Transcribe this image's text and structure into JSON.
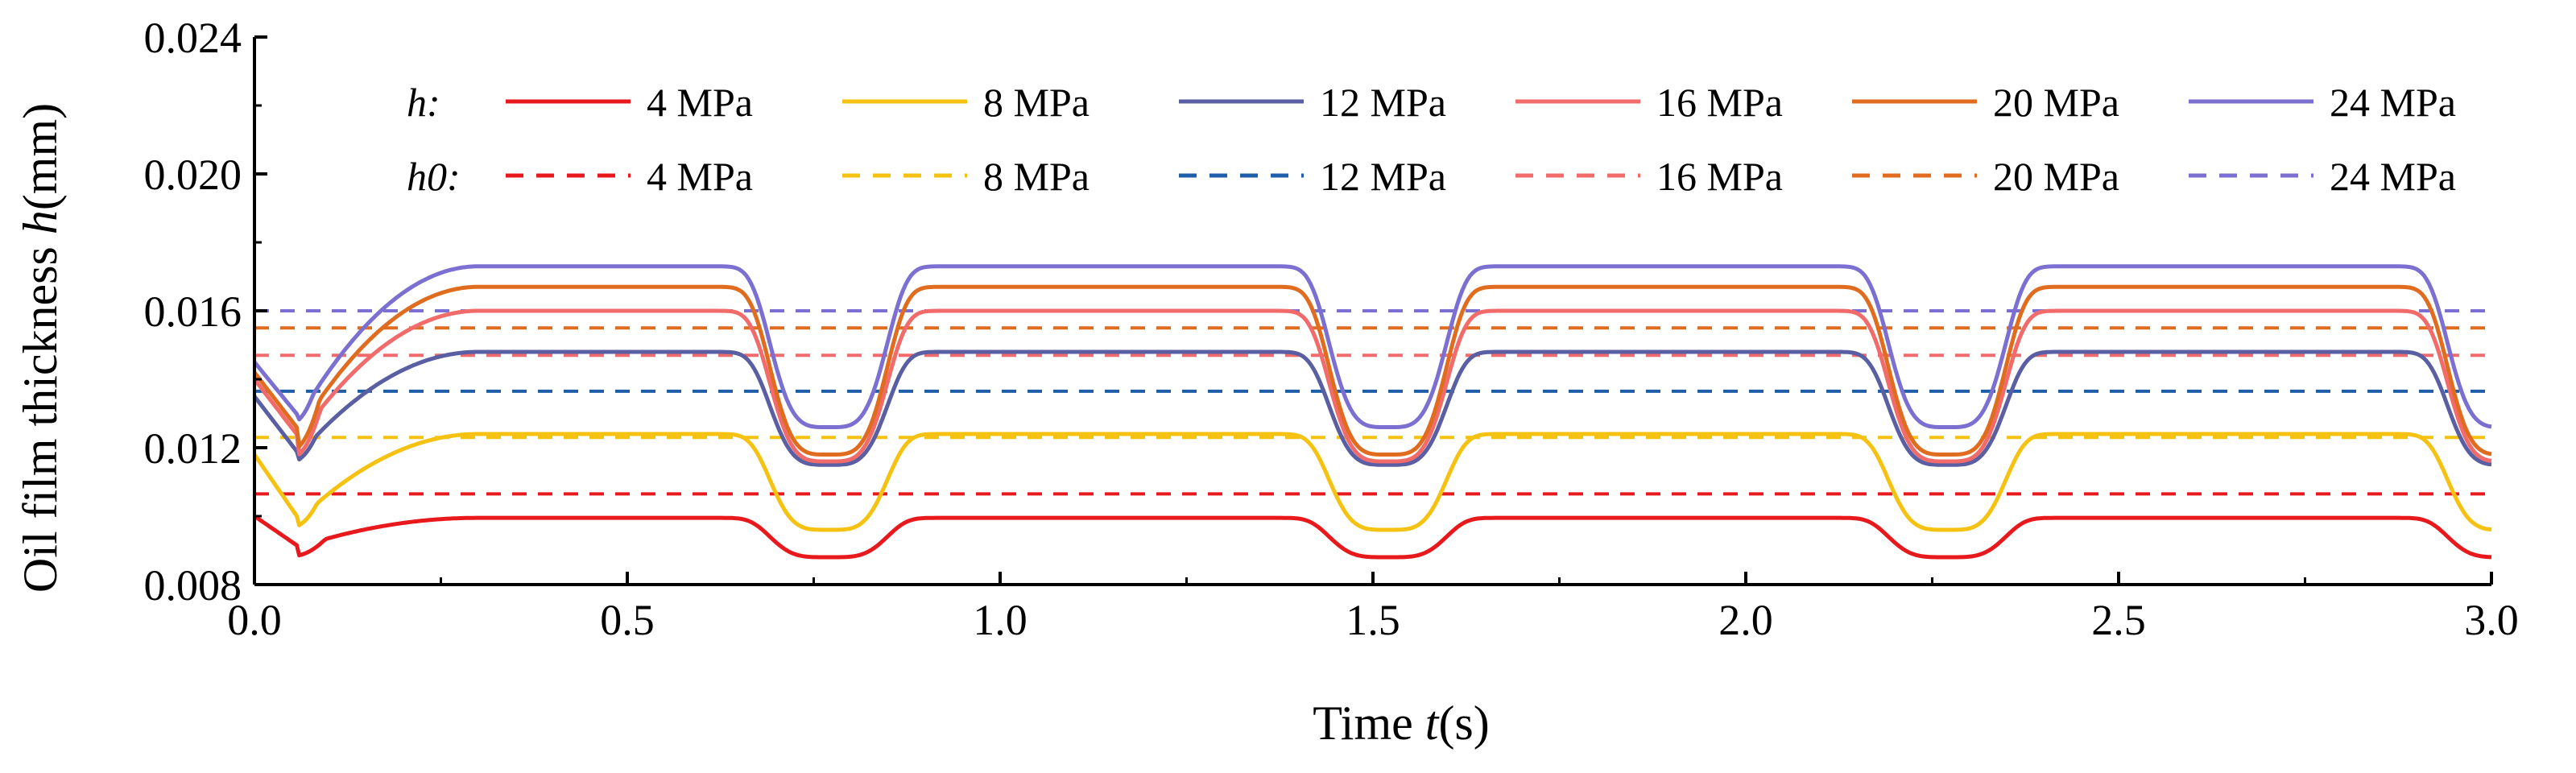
{
  "chart_data": {
    "type": "line",
    "xlabel": {
      "prefix": "Time ",
      "var": "t",
      "suffix": "(s)"
    },
    "ylabel": {
      "prefix": "Oil film thickness ",
      "var": "h",
      "suffix": "(mm)"
    },
    "xlim": [
      0.0,
      3.0
    ],
    "ylim": [
      0.008,
      0.024
    ],
    "x_ticks": [
      "0.0",
      "0.5",
      "1.0",
      "1.5",
      "2.0",
      "2.5",
      "3.0"
    ],
    "y_ticks": [
      "0.008",
      "0.012",
      "0.016",
      "0.020",
      "0.024"
    ],
    "grid": false,
    "legend_position": "top",
    "legend_rows": [
      {
        "label": "h:",
        "style": "solid"
      },
      {
        "label": "h0:",
        "style": "dashed"
      }
    ],
    "period_s": 0.75,
    "series": [
      {
        "name": "4 MPa",
        "color": "#e8191c",
        "h": {
          "low": 0.0088,
          "high": 0.00995,
          "start": 0.01,
          "first_min": 0.0091
        },
        "h0": 0.01065
      },
      {
        "name": "8 MPa",
        "color": "#f5c211",
        "h": {
          "low": 0.0096,
          "high": 0.0124,
          "start": 0.0118,
          "first_min": 0.0099
        },
        "h0": 0.0123
      },
      {
        "name": "12 MPa",
        "color": "#5a5fa3",
        "h0_color": "#1f5ea8",
        "h": {
          "low": 0.0115,
          "high": 0.0148,
          "start": 0.0135,
          "first_min": 0.0118
        },
        "h0": 0.01365
      },
      {
        "name": "16 MPa",
        "color": "#f26b6b",
        "h": {
          "low": 0.0116,
          "high": 0.016,
          "start": 0.014,
          "first_min": 0.0123
        },
        "h0": 0.0147
      },
      {
        "name": "20 MPa",
        "color": "#e06c1f",
        "h": {
          "low": 0.0118,
          "high": 0.0167,
          "start": 0.0142,
          "first_min": 0.0125
        },
        "h0": 0.0155
      },
      {
        "name": "24 MPa",
        "color": "#7b6fd1",
        "h": {
          "low": 0.0126,
          "high": 0.0173,
          "start": 0.0145,
          "first_min": 0.0129
        },
        "h0": 0.016
      }
    ]
  }
}
